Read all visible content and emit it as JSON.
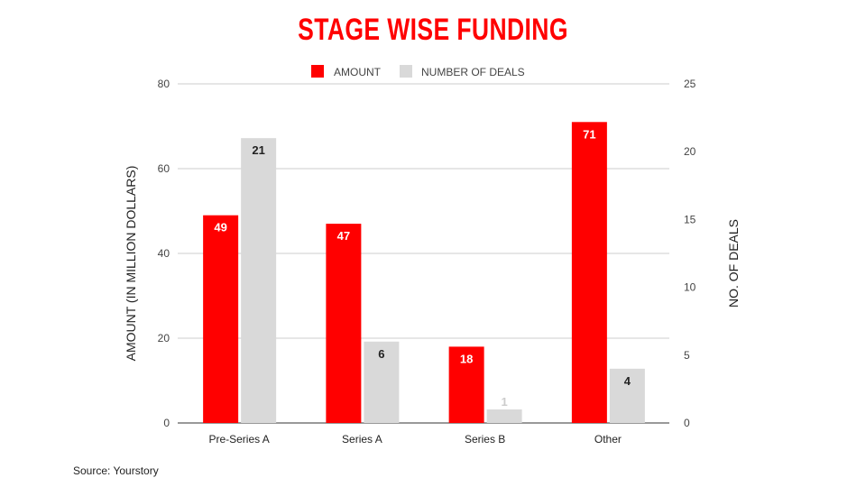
{
  "chart_data": {
    "type": "bar",
    "title": "STAGE WISE FUNDING",
    "categories": [
      "Pre-Series A",
      "Series A",
      "Series B",
      "Other"
    ],
    "series": [
      {
        "name": "AMOUNT",
        "axis": "left",
        "color": "#ff0000",
        "values": [
          49,
          47,
          18,
          71
        ]
      },
      {
        "name": "NUMBER OF DEALS",
        "axis": "right",
        "color": "#d9d9d9",
        "values": [
          21,
          6,
          1,
          4
        ]
      }
    ],
    "ylabel": "AMOUNT (IN MILLION DOLLARS)",
    "ylabel_right": "NO. OF DEALS",
    "ylim": [
      0,
      80
    ],
    "ylim_right": [
      0,
      25
    ],
    "yticks": [
      0,
      20,
      40,
      60,
      80
    ],
    "yticks_right": [
      0,
      5,
      10,
      15,
      20,
      25
    ],
    "grid": true,
    "legend_position": "top-center"
  },
  "source": "Source: Yourstory"
}
